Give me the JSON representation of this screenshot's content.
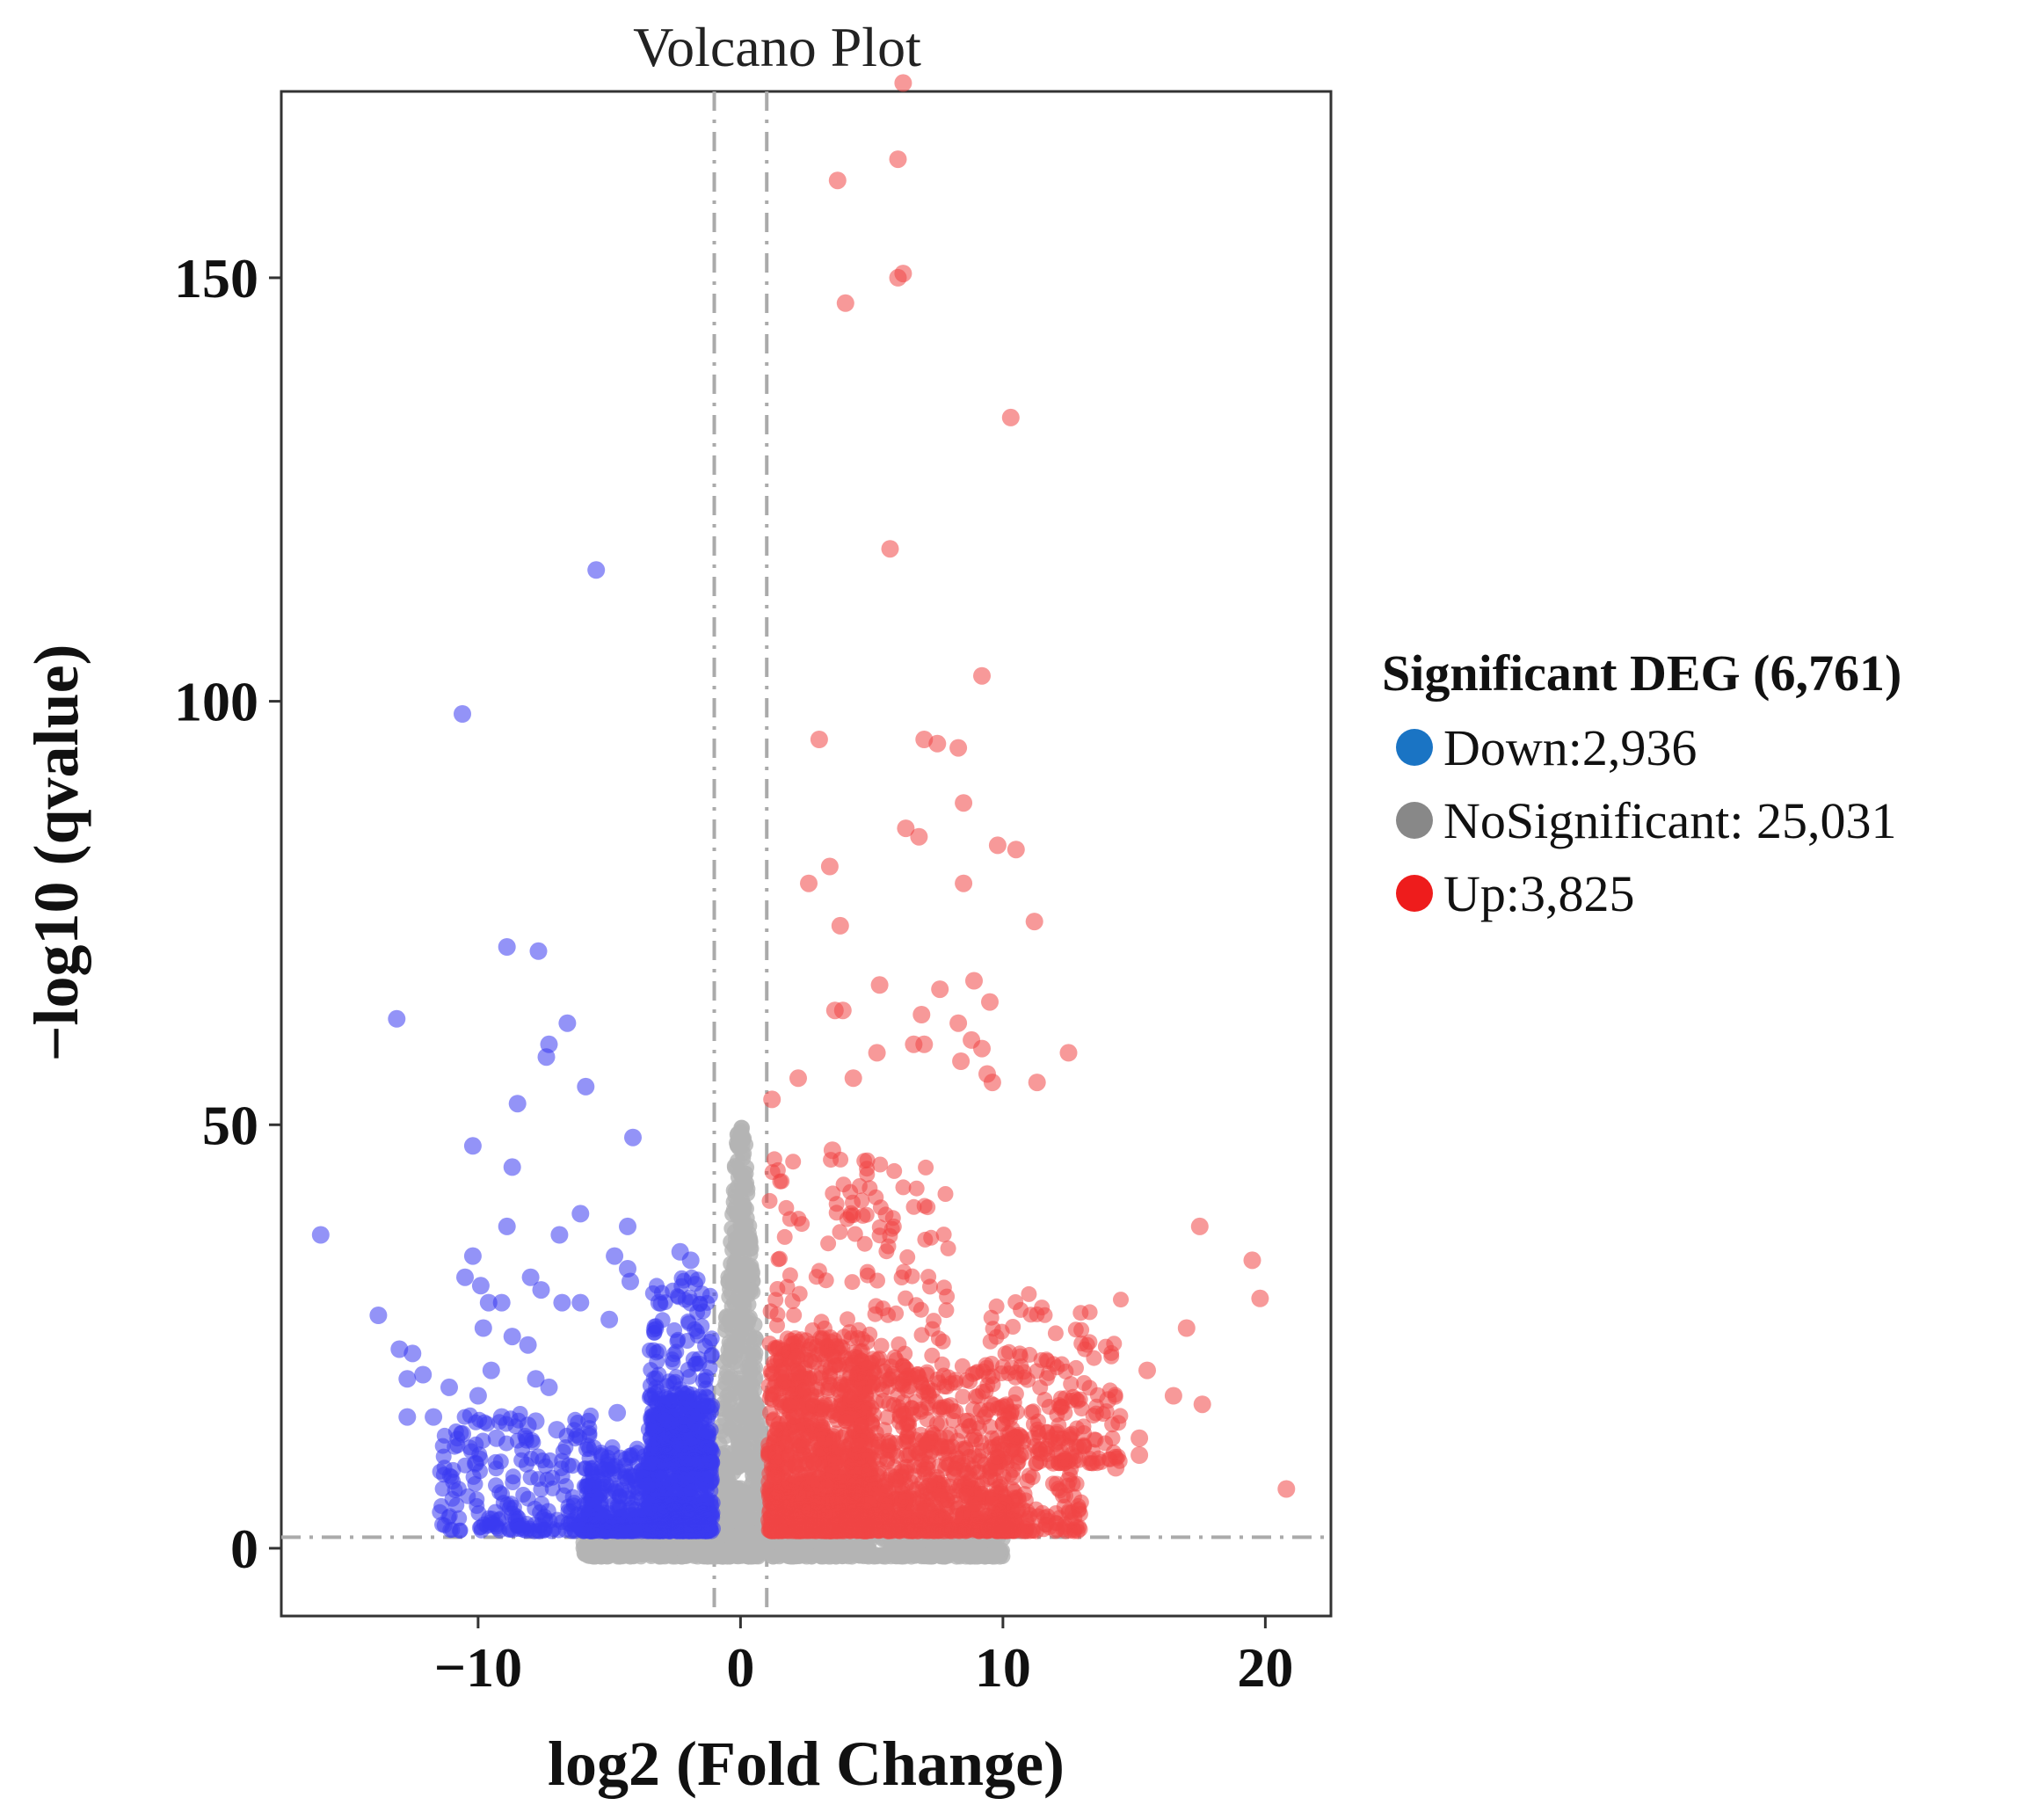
{
  "chart_data": {
    "type": "scatter",
    "title": "Volcano Plot",
    "xlabel": "log2 (Fold Change)",
    "ylabel": "−log10 (qvalue)",
    "xlim": [
      -17.5,
      22.5
    ],
    "ylim": [
      -8,
      172
    ],
    "xticks": [
      {
        "value": -10,
        "label": "−10"
      },
      {
        "value": 0,
        "label": "0"
      },
      {
        "value": 10,
        "label": "10"
      },
      {
        "value": 20,
        "label": "20"
      }
    ],
    "yticks": [
      {
        "value": 0,
        "label": "0"
      },
      {
        "value": 50,
        "label": "50"
      },
      {
        "value": 100,
        "label": "100"
      },
      {
        "value": 150,
        "label": "150"
      }
    ],
    "thresholds": {
      "x": [
        -1,
        1
      ],
      "y": 1.3
    },
    "legend": {
      "title": "Significant DEG (6,761)",
      "position": "right",
      "entries": [
        {
          "key": "down",
          "label": "Down:2,936",
          "color": "#1a74c4"
        },
        {
          "key": "nosig",
          "label": "NoSignificant: 25,031",
          "color": "#888888"
        },
        {
          "key": "up",
          "label": "Up:3,825",
          "color": "#ee1c1c"
        }
      ]
    },
    "colors": {
      "down": "#3b3bf0",
      "nosig": "#b4b4b4",
      "up": "#f04646"
    },
    "series": [
      {
        "name": "Down",
        "color": "#3b3bf0",
        "points": [
          [
            -5.5,
            115.5
          ],
          [
            -10.6,
            98.5
          ],
          [
            -8.9,
            71
          ],
          [
            -7.7,
            70.5
          ],
          [
            -13.1,
            62.5
          ],
          [
            -6.6,
            62
          ],
          [
            -7.3,
            59.5
          ],
          [
            -7.4,
            58
          ],
          [
            -5.9,
            54.5
          ],
          [
            -8.5,
            52.5
          ],
          [
            -4.1,
            48.5
          ],
          [
            -10.2,
            47.5
          ],
          [
            -8.7,
            45
          ],
          [
            -16,
            37
          ],
          [
            -6.1,
            39.5
          ],
          [
            -8.9,
            38
          ],
          [
            -4.3,
            38
          ],
          [
            -6.9,
            37
          ],
          [
            -2.3,
            35
          ],
          [
            -1.9,
            34
          ],
          [
            -10.2,
            34.5
          ],
          [
            -4.8,
            34.5
          ],
          [
            -4.3,
            33
          ],
          [
            -10.5,
            32
          ],
          [
            -8,
            32
          ],
          [
            -7.6,
            30.5
          ],
          [
            -4.2,
            31.5
          ],
          [
            -9.9,
            31
          ],
          [
            -6.8,
            29
          ],
          [
            -6.1,
            29
          ],
          [
            -13.8,
            27.5
          ],
          [
            -9.6,
            29
          ],
          [
            -9.1,
            29
          ],
          [
            -5,
            27
          ],
          [
            -3.1,
            29
          ],
          [
            -1.9,
            29
          ],
          [
            -9.8,
            26
          ],
          [
            -8.7,
            25
          ],
          [
            -13,
            23.5
          ],
          [
            -12.5,
            23
          ],
          [
            -8.1,
            24
          ],
          [
            -12.1,
            20.5
          ],
          [
            -11.1,
            19
          ],
          [
            -9.5,
            21
          ],
          [
            -7.8,
            20
          ],
          [
            -12.7,
            20
          ],
          [
            -10,
            18
          ],
          [
            -7.3,
            19
          ],
          [
            -12.7,
            15.5
          ],
          [
            -11.7,
            15.5
          ],
          [
            -9.1,
            15.5
          ],
          [
            -7.8,
            15
          ],
          [
            -10.6,
            13.5
          ],
          [
            -7,
            14
          ],
          [
            -8.1,
            14.5
          ],
          [
            -4.7,
            16
          ],
          [
            -9.3,
            13
          ],
          [
            -10.1,
            10
          ],
          [
            -8.7,
            4
          ]
        ]
      },
      {
        "name": "Up",
        "color": "#f04646",
        "points": [
          [
            6.2,
            173
          ],
          [
            6,
            164
          ],
          [
            3.7,
            161.5
          ],
          [
            6.2,
            150.5
          ],
          [
            6,
            150
          ],
          [
            4,
            147
          ],
          [
            10.3,
            133.5
          ],
          [
            5.7,
            118
          ],
          [
            9.2,
            103
          ],
          [
            3,
            95.5
          ],
          [
            7,
            95.5
          ],
          [
            7.5,
            95
          ],
          [
            8.3,
            94.5
          ],
          [
            8.5,
            88
          ],
          [
            6.3,
            85
          ],
          [
            6.8,
            84
          ],
          [
            9.8,
            83
          ],
          [
            10.5,
            82.5
          ],
          [
            3.4,
            80.5
          ],
          [
            2.6,
            78.5
          ],
          [
            8.5,
            78.5
          ],
          [
            3.8,
            73.5
          ],
          [
            11.2,
            74
          ],
          [
            8.9,
            67
          ],
          [
            5.3,
            66.5
          ],
          [
            7.6,
            66
          ],
          [
            9.5,
            64.5
          ],
          [
            3.6,
            63.5
          ],
          [
            3.9,
            63.5
          ],
          [
            6.9,
            63
          ],
          [
            8.3,
            62
          ],
          [
            8.8,
            60
          ],
          [
            6.6,
            59.5
          ],
          [
            7,
            59.5
          ],
          [
            9.2,
            59
          ],
          [
            5.2,
            58.5
          ],
          [
            12.5,
            58.5
          ],
          [
            8.4,
            57.5
          ],
          [
            9.4,
            56
          ],
          [
            4.3,
            55.5
          ],
          [
            2.2,
            55.5
          ],
          [
            11.3,
            55
          ],
          [
            9.6,
            55
          ],
          [
            1.2,
            53
          ],
          [
            3.5,
            47
          ],
          [
            17.5,
            38
          ],
          [
            19.5,
            34
          ],
          [
            19.8,
            29.5
          ],
          [
            17,
            26
          ],
          [
            15.5,
            21
          ],
          [
            14,
            17.5
          ],
          [
            16.5,
            18
          ],
          [
            17.6,
            17
          ],
          [
            15.2,
            13
          ],
          [
            15.2,
            11
          ],
          [
            14.3,
            9.5
          ],
          [
            20.8,
            7
          ],
          [
            12.5,
            8
          ]
        ]
      }
    ],
    "clouds": [
      {
        "series": "Down",
        "x": [
          -3.5,
          -1.05
        ],
        "y": [
          2,
          18
        ],
        "n": 700
      },
      {
        "series": "Down",
        "x": [
          -6,
          -3.5
        ],
        "y": [
          2,
          12
        ],
        "n": 260
      },
      {
        "series": "Down",
        "x": [
          -3.5,
          -1.05
        ],
        "y": [
          10,
          32
        ],
        "n": 200
      },
      {
        "series": "Down",
        "x": [
          -11.5,
          -5.5
        ],
        "y": [
          2,
          16
        ],
        "n": 220
      },
      {
        "series": "Up",
        "x": [
          1.05,
          5
        ],
        "y": [
          2,
          25
        ],
        "n": 900
      },
      {
        "series": "Up",
        "x": [
          1.05,
          8
        ],
        "y": [
          2,
          46
        ],
        "n": 420
      },
      {
        "series": "Up",
        "x": [
          4,
          10.5
        ],
        "y": [
          2,
          22
        ],
        "n": 700
      },
      {
        "series": "Up",
        "x": [
          8.5,
          13
        ],
        "y": [
          2,
          18
        ],
        "n": 180
      },
      {
        "series": "Up",
        "x": [
          9.5,
          14.5
        ],
        "y": [
          10,
          30
        ],
        "n": 170
      },
      {
        "series": "NoSignificant",
        "x": [
          -1.05,
          1.05
        ],
        "y": [
          0,
          50
        ],
        "n": 650
      },
      {
        "series": "NoSignificant",
        "x": [
          -6,
          10
        ],
        "y": [
          -1,
          2
        ],
        "n": 750
      }
    ]
  }
}
